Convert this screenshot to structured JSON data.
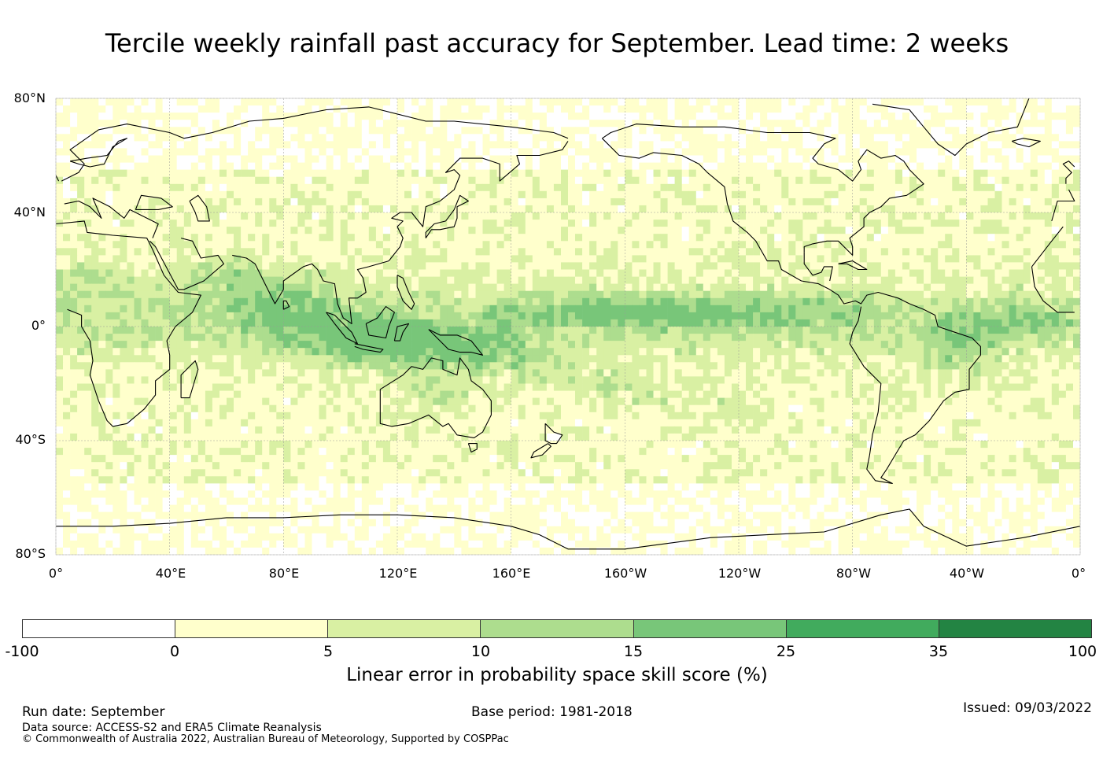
{
  "title": "Tercile weekly rainfall past accuracy for September. Lead time: 2 weeks",
  "map": {
    "lat_labels": [
      "80°N",
      "40°N",
      "0°",
      "40°S",
      "80°S"
    ],
    "lon_labels": [
      "0°",
      "40°E",
      "80°E",
      "120°E",
      "160°E",
      "160°W",
      "120°W",
      "80°W",
      "40°W",
      "0°"
    ],
    "lat_range": [
      -80,
      80
    ],
    "lon_range": [
      0,
      360
    ],
    "palette": [
      "#ffffff",
      "#ffffcc",
      "#d9f0a3",
      "#addd8e",
      "#78c679",
      "#41ab5d",
      "#238443"
    ]
  },
  "colorbar": {
    "ticks": [
      "-100",
      "0",
      "5",
      "10",
      "15",
      "25",
      "35",
      "100"
    ],
    "colors": [
      "#ffffff",
      "#ffffcc",
      "#d9f0a3",
      "#addd8e",
      "#78c679",
      "#41ab5d",
      "#238443"
    ],
    "label": "Linear error in probability space skill score (%)"
  },
  "footer": {
    "run_date": "Run date: September",
    "base_period": "Base period: 1981-2018",
    "issued": "Issued: 09/03/2022",
    "data_source": "Data source: ACCESS-S2 and ERA5 Climate Reanalysis",
    "copyright": "© Commonwealth of Australia 2022, Australian Bureau of Meteorology, Supported by COSPPac"
  }
}
